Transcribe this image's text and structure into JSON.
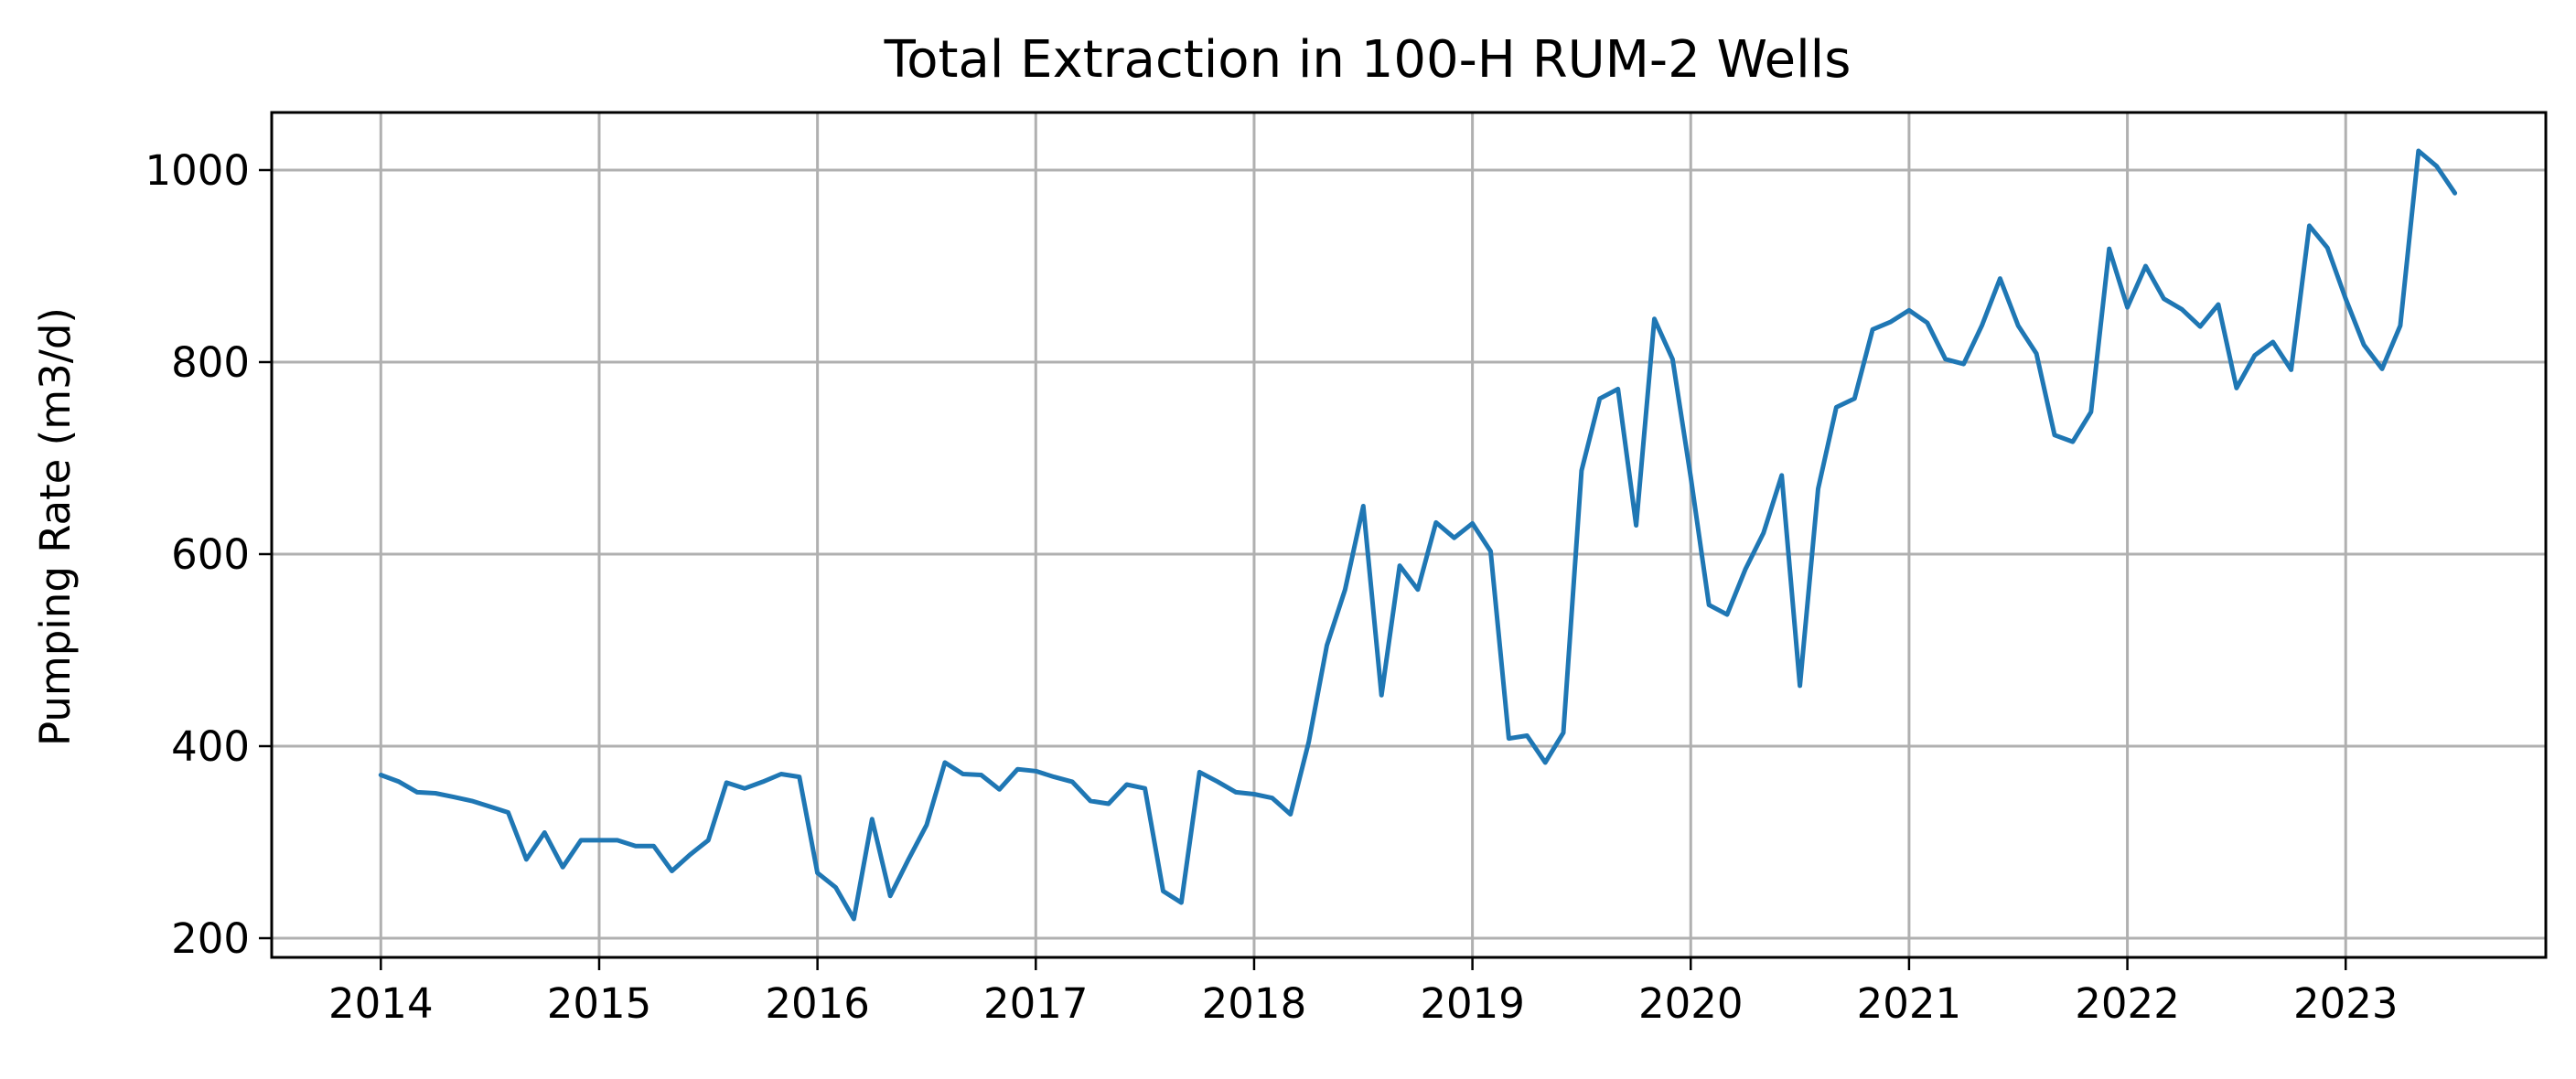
{
  "chart_data": {
    "type": "line",
    "title": "Total Extraction in 100-H RUM-2 Wells",
    "xlabel": "",
    "ylabel": "Pumping Rate (m3/d)",
    "xlim": [
      "2013-07-01",
      "2023-12-01"
    ],
    "ylim": [
      180,
      1060
    ],
    "x_ticks": [
      "2014",
      "2015",
      "2016",
      "2017",
      "2018",
      "2019",
      "2020",
      "2021",
      "2022",
      "2023"
    ],
    "y_ticks": [
      200,
      400,
      600,
      800,
      1000
    ],
    "grid": true,
    "legend": "none",
    "colors": {
      "series": "#1f77b4",
      "grid": "#b0b0b0",
      "axis": "#000000"
    },
    "series": [
      {
        "x": [
          "2014-01",
          "2014-02",
          "2014-03",
          "2014-04",
          "2014-05",
          "2014-06",
          "2014-07",
          "2014-08",
          "2014-09",
          "2014-10",
          "2014-11",
          "2014-12",
          "2015-01",
          "2015-02",
          "2015-03",
          "2015-04",
          "2015-05",
          "2015-06",
          "2015-07",
          "2015-08",
          "2015-09",
          "2015-10",
          "2015-11",
          "2015-12",
          "2016-01",
          "2016-02",
          "2016-03",
          "2016-04",
          "2016-05",
          "2016-06",
          "2016-07",
          "2016-08",
          "2016-09",
          "2016-10",
          "2016-11",
          "2016-12",
          "2017-01",
          "2017-02",
          "2017-03",
          "2017-04",
          "2017-05",
          "2017-06",
          "2017-07",
          "2017-08",
          "2017-09",
          "2017-10",
          "2017-11",
          "2017-12",
          "2018-01",
          "2018-02",
          "2018-03",
          "2018-04",
          "2018-05",
          "2018-06",
          "2018-07",
          "2018-08",
          "2018-09",
          "2018-10",
          "2018-11",
          "2018-12",
          "2019-01",
          "2019-02",
          "2019-03",
          "2019-04",
          "2019-05",
          "2019-06",
          "2019-07",
          "2019-08",
          "2019-09",
          "2019-10",
          "2019-11",
          "2019-12",
          "2020-01",
          "2020-02",
          "2020-03",
          "2020-04",
          "2020-05",
          "2020-06",
          "2020-07",
          "2020-08",
          "2020-09",
          "2020-10",
          "2020-11",
          "2020-12",
          "2021-01",
          "2021-02",
          "2021-03",
          "2021-04",
          "2021-05",
          "2021-06",
          "2021-07",
          "2021-08",
          "2021-09",
          "2021-10",
          "2021-11",
          "2021-12",
          "2022-01",
          "2022-02",
          "2022-03",
          "2022-04",
          "2022-05",
          "2022-06",
          "2022-07",
          "2022-08",
          "2022-09",
          "2022-10",
          "2022-11",
          "2022-12",
          "2023-01",
          "2023-02",
          "2023-03",
          "2023-04",
          "2023-05",
          "2023-06",
          "2023-07"
        ],
        "y": [
          370,
          363,
          352,
          351,
          347,
          343,
          337,
          331,
          282,
          310,
          274,
          302,
          302,
          302,
          296,
          296,
          270,
          287,
          302,
          362,
          356,
          363,
          371,
          368,
          268,
          253,
          220,
          324,
          244,
          282,
          318,
          383,
          371,
          370,
          355,
          376,
          374,
          368,
          363,
          343,
          340,
          360,
          356,
          249,
          237,
          373,
          363,
          352,
          350,
          346,
          329,
          404,
          505,
          563,
          650,
          453,
          588,
          563,
          633,
          617,
          632,
          603,
          408,
          411,
          383,
          414,
          687,
          762,
          772,
          630,
          845,
          803,
          680,
          547,
          537,
          584,
          622,
          682,
          463,
          668,
          753,
          762,
          834,
          842,
          854,
          841,
          803,
          798,
          838,
          887,
          838,
          809,
          724,
          717,
          748,
          918,
          857,
          900,
          866,
          855,
          837,
          860,
          773,
          807,
          821,
          792,
          942,
          919,
          866,
          818,
          793,
          838,
          1020,
          1004,
          976
        ]
      }
    ]
  }
}
